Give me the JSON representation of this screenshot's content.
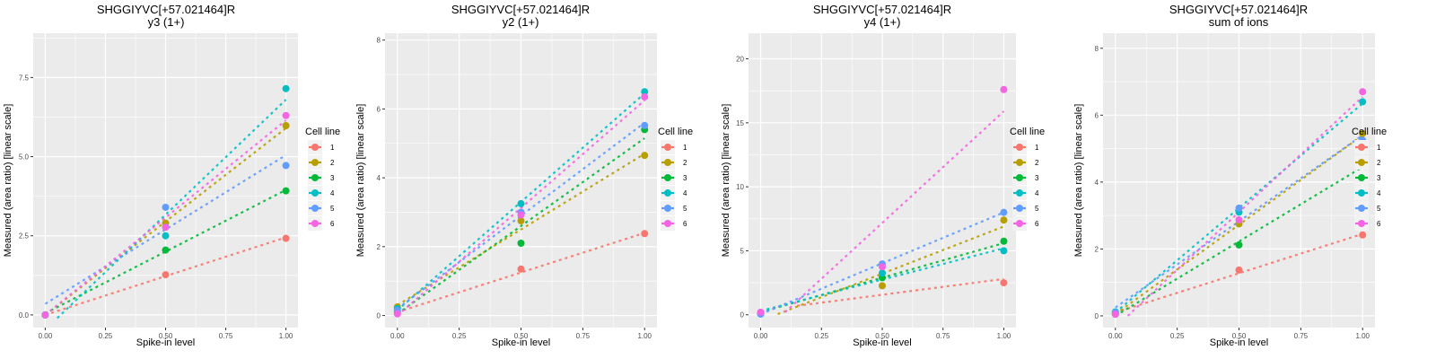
{
  "colors": {
    "panel_bg": "#EBEBEB",
    "grid": "#FFFFFF",
    "legend_key_bg": "#F2F2F2",
    "series": [
      "#F8766D",
      "#B79F00",
      "#00BA38",
      "#00BFC4",
      "#619CFF",
      "#F564E3"
    ]
  },
  "chart_data": [
    {
      "type": "scatter",
      "title": "SHGGIYVC[+57.021464]R",
      "subtitle": "y3 (1+)",
      "xlabel": "Spike-in level",
      "ylabel": "Measured (area ratio) [linear scale]",
      "xlim": [
        -0.05,
        1.05
      ],
      "ylim": [
        -0.4,
        8.9
      ],
      "xticks": [
        0,
        0.25,
        0.5,
        0.75,
        1.0
      ],
      "xtick_labels": [
        "0.00",
        "0.25",
        "0.50",
        "0.75",
        "1.00"
      ],
      "yticks": [
        0,
        2.5,
        5.0,
        7.5
      ],
      "ytick_labels": [
        "0.0",
        "2.5",
        "5.0",
        "7.5"
      ],
      "grid": true,
      "legend": {
        "title": "Cell line",
        "position": "right",
        "entries": [
          "1",
          "2",
          "3",
          "4",
          "5",
          "6"
        ]
      },
      "x": [
        0,
        0.5,
        1.0
      ],
      "series": [
        {
          "name": "1",
          "values": [
            0.0,
            1.27,
            2.42
          ],
          "fit": [
            [
              0.0,
              0.0
            ],
            [
              1.0,
              2.45
            ]
          ]
        },
        {
          "name": "2",
          "values": [
            0.0,
            2.9,
            5.98
          ],
          "fit": [
            [
              0.0,
              0.0
            ],
            [
              1.0,
              5.9
            ]
          ]
        },
        {
          "name": "3",
          "values": [
            0.0,
            2.05,
            3.92
          ],
          "fit": [
            [
              0.0,
              0.05
            ],
            [
              1.0,
              3.95
            ]
          ]
        },
        {
          "name": "4",
          "values": [
            0.0,
            2.5,
            7.15
          ],
          "fit": [
            [
              0.05,
              -0.1
            ],
            [
              1.0,
              6.8
            ]
          ]
        },
        {
          "name": "5",
          "values": [
            0.0,
            3.4,
            4.72
          ],
          "fit": [
            [
              0.0,
              0.35
            ],
            [
              1.0,
              5.05
            ]
          ]
        },
        {
          "name": "6",
          "values": [
            0.0,
            2.77,
            6.3
          ],
          "fit": [
            [
              0.0,
              0.0
            ],
            [
              1.0,
              6.15
            ]
          ]
        }
      ]
    },
    {
      "type": "scatter",
      "title": "SHGGIYVC[+57.021464]R",
      "subtitle": "y2 (1+)",
      "xlabel": "Spike-in level",
      "ylabel": "Measured (area ratio) [linear scale]",
      "xlim": [
        -0.05,
        1.05
      ],
      "ylim": [
        -0.35,
        8.2
      ],
      "xticks": [
        0,
        0.25,
        0.5,
        0.75,
        1.0
      ],
      "xtick_labels": [
        "0.00",
        "0.25",
        "0.50",
        "0.75",
        "1.00"
      ],
      "yticks": [
        0,
        2,
        4,
        6,
        8
      ],
      "ytick_labels": [
        "0",
        "2",
        "4",
        "6",
        "8"
      ],
      "grid": true,
      "legend": {
        "title": "Cell line",
        "position": "right",
        "entries": [
          "1",
          "2",
          "3",
          "4",
          "5",
          "6"
        ]
      },
      "x": [
        0,
        0.5,
        1.0
      ],
      "series": [
        {
          "name": "1",
          "values": [
            0.05,
            1.35,
            2.38
          ],
          "fit": [
            [
              0.0,
              0.1
            ],
            [
              1.0,
              2.4
            ]
          ]
        },
        {
          "name": "2",
          "values": [
            0.25,
            2.75,
            4.65
          ],
          "fit": [
            [
              0.0,
              0.3
            ],
            [
              1.0,
              4.7
            ]
          ]
        },
        {
          "name": "3",
          "values": [
            0.1,
            2.1,
            5.4
          ],
          "fit": [
            [
              0.0,
              0.05
            ],
            [
              1.0,
              5.15
            ]
          ]
        },
        {
          "name": "4",
          "values": [
            0.2,
            3.25,
            6.5
          ],
          "fit": [
            [
              0.0,
              0.15
            ],
            [
              1.0,
              6.45
            ]
          ]
        },
        {
          "name": "5",
          "values": [
            0.15,
            3.0,
            5.52
          ],
          "fit": [
            [
              0.0,
              0.2
            ],
            [
              1.0,
              5.6
            ]
          ]
        },
        {
          "name": "6",
          "values": [
            0.05,
            2.92,
            6.35
          ],
          "fit": [
            [
              0.0,
              0.0
            ],
            [
              1.0,
              6.25
            ]
          ]
        }
      ]
    },
    {
      "type": "scatter",
      "title": "SHGGIYVC[+57.021464]R",
      "subtitle": "y4 (1+)",
      "xlabel": "Spike-in level",
      "ylabel": "Measured (area ratio) [linear scale]",
      "xlim": [
        -0.05,
        1.05
      ],
      "ylim": [
        -1.0,
        22.0
      ],
      "xticks": [
        0,
        0.25,
        0.5,
        0.75,
        1.0
      ],
      "xtick_labels": [
        "0.00",
        "0.25",
        "0.50",
        "0.75",
        "1.00"
      ],
      "yticks": [
        0,
        5,
        10,
        15,
        20
      ],
      "ytick_labels": [
        "0",
        "5",
        "10",
        "15",
        "20"
      ],
      "grid": true,
      "legend": {
        "title": "Cell line",
        "position": "right",
        "entries": [
          "1",
          "2",
          "3",
          "4",
          "5",
          "6"
        ]
      },
      "x": [
        0,
        0.5,
        1.0
      ],
      "series": [
        {
          "name": "1",
          "values": [
            0.1,
            null,
            2.5
          ],
          "fit": [
            [
              0.15,
              0.7
            ],
            [
              1.0,
              2.8
            ]
          ]
        },
        {
          "name": "2",
          "values": [
            0.1,
            2.27,
            7.4
          ],
          "fit": [
            [
              0.07,
              0.05
            ],
            [
              1.0,
              6.9
            ]
          ]
        },
        {
          "name": "3",
          "values": [
            0.1,
            2.9,
            5.75
          ],
          "fit": [
            [
              0.0,
              0.2
            ],
            [
              1.0,
              5.6
            ]
          ]
        },
        {
          "name": "4",
          "values": [
            0.1,
            3.26,
            5.0
          ],
          "fit": [
            [
              0.0,
              0.3
            ],
            [
              1.0,
              5.2
            ]
          ]
        },
        {
          "name": "5",
          "values": [
            0.05,
            3.97,
            8.0
          ],
          "fit": [
            [
              0.0,
              0.05
            ],
            [
              1.0,
              8.0
            ]
          ]
        },
        {
          "name": "6",
          "values": [
            0.2,
            3.75,
            17.6
          ],
          "fit": [
            [
              0.1,
              0.2
            ],
            [
              1.0,
              15.9
            ]
          ]
        }
      ]
    },
    {
      "type": "scatter",
      "title": "SHGGIYVC[+57.021464]R",
      "subtitle": "sum of ions",
      "xlabel": "Spike-in level",
      "ylabel": "Measured (area ratio) [linear scale]",
      "xlim": [
        -0.05,
        1.05
      ],
      "ylim": [
        -0.35,
        8.45
      ],
      "xticks": [
        0,
        0.25,
        0.5,
        0.75,
        1.0
      ],
      "xtick_labels": [
        "0.00",
        "0.25",
        "0.50",
        "0.75",
        "1.00"
      ],
      "yticks": [
        0,
        2,
        4,
        6,
        8
      ],
      "ytick_labels": [
        "0",
        "2",
        "4",
        "6",
        "8"
      ],
      "grid": true,
      "legend": {
        "title": "Cell line",
        "position": "right",
        "entries": [
          "1",
          "2",
          "3",
          "4",
          "5",
          "6"
        ]
      },
      "x": [
        0,
        0.5,
        1.0
      ],
      "series": [
        {
          "name": "1",
          "values": [
            0.05,
            1.37,
            2.42
          ],
          "fit": [
            [
              0.0,
              0.1
            ],
            [
              1.0,
              2.45
            ]
          ]
        },
        {
          "name": "2",
          "values": [
            0.1,
            2.75,
            5.45
          ],
          "fit": [
            [
              0.0,
              0.05
            ],
            [
              1.0,
              5.4
            ]
          ]
        },
        {
          "name": "3",
          "values": [
            0.05,
            2.12,
            4.6
          ],
          "fit": [
            [
              0.0,
              0.0
            ],
            [
              1.0,
              4.45
            ]
          ]
        },
        {
          "name": "4",
          "values": [
            0.12,
            3.1,
            6.4
          ],
          "fit": [
            [
              0.0,
              0.1
            ],
            [
              1.0,
              6.35
            ]
          ]
        },
        {
          "name": "5",
          "values": [
            0.1,
            3.22,
            5.25
          ],
          "fit": [
            [
              0.0,
              0.25
            ],
            [
              1.0,
              5.4
            ]
          ]
        },
        {
          "name": "6",
          "values": [
            0.05,
            2.87,
            6.7
          ],
          "fit": [
            [
              0.05,
              0.0
            ],
            [
              1.0,
              6.55
            ]
          ]
        }
      ]
    }
  ]
}
